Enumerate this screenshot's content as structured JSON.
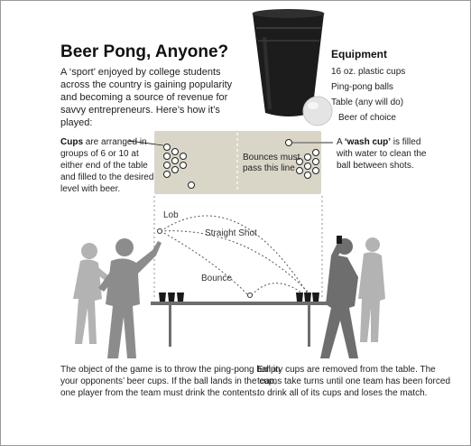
{
  "title": "Beer Pong, Anyone?",
  "intro": "A ‘sport’ enjoyed by college students across the country is gaining popularity and becoming a source of revenue for savvy entrepreneurs. Here’s how it’s played:",
  "equipment": {
    "title": "Equipment",
    "items": [
      "16 oz. plastic cups",
      "Ping-pong balls",
      "Table (any will do)",
      "Beer of choice"
    ]
  },
  "left_note": {
    "bold": "Cups",
    "text": " are arranged in groups of 6 or 10 at either end of the table and filled to the desired level with beer."
  },
  "right_note": {
    "prefix": "A ",
    "bold": "‘wash cup’",
    "text": " is filled with water to clean the ball between shots."
  },
  "bounce_note": "Bounces must pass this line",
  "shots": {
    "lob": "Lob",
    "straight": "Straight Shot",
    "bounce": "Bounce"
  },
  "bottom_left": "The object of the game is to throw the ping-pong ball in your opponents’ beer cups. If the ball lands in the cup, one player from the team must drink the contents.",
  "bottom_right": "Empty cups are removed from the table. The teams take turns until one team has been forced to drink all of its cups and loses the match.",
  "colors": {
    "figure": "#8c8c8c",
    "figure_dark": "#6e6e6e",
    "figure_light": "#b3b3b3",
    "table_top": "#d9d6c8",
    "cup": "#1a1a1a"
  }
}
